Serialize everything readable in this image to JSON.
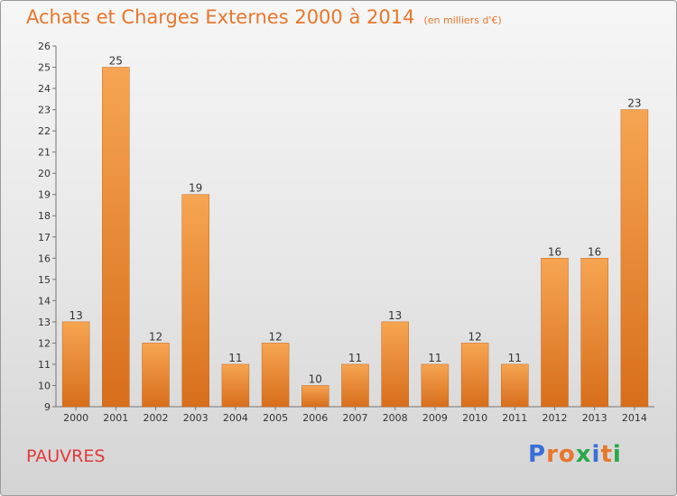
{
  "header": {
    "title": "Achats et Charges Externes 2000 à 2014",
    "unit": "(en milliers d'€)"
  },
  "footer": {
    "commune": "PAUVRES",
    "logo": "Proxiti"
  },
  "colors": {
    "title": "#e8762b",
    "commune": "#e23a3a",
    "bar_light": "#f6a552",
    "bar_dark": "#d76e1c",
    "logo_letters": [
      "#3a6fd8",
      "#e8762b",
      "#e8762b",
      "#2aa84a",
      "#3a6fd8",
      "#e8762b",
      "#2aa84a"
    ]
  },
  "chart_data": {
    "type": "bar",
    "title": "Achats et Charges Externes 2000 à 2014",
    "categories": [
      "2000",
      "2001",
      "2002",
      "2003",
      "2004",
      "2005",
      "2006",
      "2007",
      "2008",
      "2009",
      "2010",
      "2011",
      "2012",
      "2013",
      "2014"
    ],
    "values": [
      13,
      25,
      12,
      19,
      11,
      12,
      10,
      11,
      13,
      11,
      12,
      11,
      16,
      16,
      23
    ],
    "ylim": [
      9,
      26
    ],
    "yticks": [
      9,
      10,
      11,
      12,
      13,
      14,
      15,
      16,
      17,
      18,
      19,
      20,
      21,
      22,
      23,
      24,
      25,
      26
    ],
    "grid": false,
    "legend": "none"
  }
}
